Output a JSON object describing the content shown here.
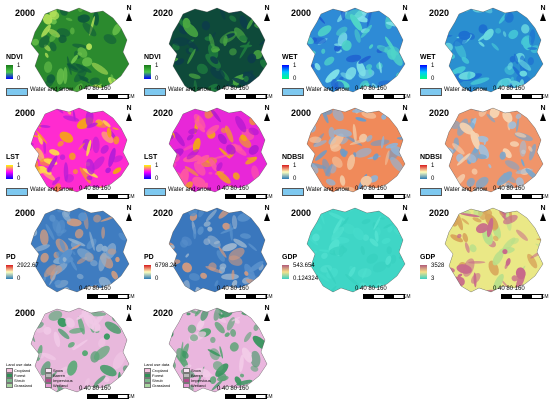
{
  "panels": [
    {
      "id": "ndvi-2000",
      "year": "2000",
      "label": "NDVI",
      "max": "1",
      "min": "0",
      "water": "Water and snow",
      "colors": [
        "#2b8a2e",
        "#69c04a",
        "#b6e35a",
        "#0f5a3a"
      ],
      "gradient": [
        "#1a7a1a",
        "#4cc84c",
        "#0000ff"
      ]
    },
    {
      "id": "ndvi-2020",
      "year": "2020",
      "label": "NDVI",
      "max": "1",
      "min": "0",
      "water": "Water and snow",
      "colors": [
        "#0e4a3a",
        "#1e7a3e",
        "#0c3d4a",
        "#4aa842"
      ],
      "gradient": [
        "#1a7a1a",
        "#4cc84c",
        "#0000ff"
      ]
    },
    {
      "id": "wet-2000",
      "year": "2000",
      "label": "WET",
      "max": "1",
      "min": "0",
      "water": "Water and snow",
      "colors": [
        "#2e8bd6",
        "#4fd4c8",
        "#1f5fcf",
        "#7fe0e8"
      ],
      "gradient": [
        "#0000ff",
        "#00c8ff",
        "#00ff80"
      ]
    },
    {
      "id": "wet-2020",
      "year": "2020",
      "label": "WET",
      "max": "1",
      "min": "0",
      "water": "Water and snow",
      "colors": [
        "#2a8fd0",
        "#45c7d6",
        "#1d6fd0",
        "#6ad8e0"
      ],
      "gradient": [
        "#0000ff",
        "#00c8ff",
        "#00ff80"
      ]
    },
    {
      "id": "lst-2000",
      "year": "2000",
      "label": "LST",
      "max": "1",
      "min": "0",
      "water": "Water and snow",
      "colors": [
        "#ff2bd0",
        "#f6a21a",
        "#b41dd8",
        "#ffd84a"
      ],
      "gradient": [
        "#ffff00",
        "#ff00ff",
        "#0000ff"
      ]
    },
    {
      "id": "lst-2020",
      "year": "2020",
      "label": "LST",
      "max": "1",
      "min": "0",
      "water": "Water and snow",
      "colors": [
        "#e827d8",
        "#b319d0",
        "#f3a31c",
        "#ff5aa0"
      ],
      "gradient": [
        "#ffff00",
        "#ff00ff",
        "#0000ff"
      ]
    },
    {
      "id": "ndbsi-2000",
      "year": "2000",
      "label": "NDBSI",
      "max": "1",
      "min": "0",
      "water": "Water and snow",
      "colors": [
        "#f08a5a",
        "#8fb4d8",
        "#f3c6a0",
        "#6d9bc8"
      ],
      "gradient": [
        "#d7191c",
        "#ffffbf",
        "#2c7bb6"
      ]
    },
    {
      "id": "ndbsi-2020",
      "year": "2020",
      "label": "NDBSI",
      "max": "1",
      "min": "0",
      "water": "Water and snow",
      "colors": [
        "#f0956a",
        "#9ec0de",
        "#f6d2b0",
        "#7aa6cd"
      ],
      "gradient": [
        "#d7191c",
        "#ffffbf",
        "#2c7bb6"
      ]
    },
    {
      "id": "pd-2000",
      "year": "2000",
      "label": "PD",
      "max": "2922.67",
      "min": "0",
      "water": "",
      "colors": [
        "#3f7cc0",
        "#5a92cc",
        "#8fb0cf",
        "#c89a84"
      ],
      "gradient": [
        "#d7191c",
        "#ffffbf",
        "#2c7bb6"
      ]
    },
    {
      "id": "pd-2020",
      "year": "2020",
      "label": "PD",
      "max": "6798.24",
      "min": "0",
      "water": "",
      "colors": [
        "#3a77bd",
        "#5890cb",
        "#9bb5cf",
        "#d29a80"
      ],
      "gradient": [
        "#d7191c",
        "#ffffbf",
        "#2c7bb6"
      ]
    },
    {
      "id": "gdp-2000",
      "year": "2000",
      "label": "GDP",
      "max": "543.654",
      "min": "0.124324",
      "water": "",
      "colors": [
        "#3fd6c6",
        "#46dccb",
        "#38d0bf",
        "#52e0d0"
      ],
      "gradient": [
        "#b05a7a",
        "#f5e08a",
        "#3ad0c2"
      ]
    },
    {
      "id": "gdp-2020",
      "year": "2020",
      "label": "GDP",
      "max": "3528",
      "min": "3",
      "water": "",
      "colors": [
        "#eae886",
        "#b9df8a",
        "#d7a45a",
        "#c86a8a"
      ],
      "gradient": [
        "#b05a7a",
        "#f5e08a",
        "#3ad0c2"
      ]
    }
  ],
  "scale": {
    "numbers": "0  40 80   160",
    "unit": "KM"
  },
  "north": "N",
  "landuse": [
    {
      "id": "lu-2000",
      "year": "2000",
      "colors": [
        "#e8b8dc",
        "#5aa876",
        "#f0c8e6",
        "#3c9a62"
      ]
    },
    {
      "id": "lu-2020",
      "year": "2020",
      "colors": [
        "#eab6de",
        "#58a473",
        "#f2cce8",
        "#3a9660"
      ]
    }
  ],
  "landuse_legend": {
    "title": "Land use data",
    "items": [
      {
        "label": "Cropland",
        "color": "#f4c1de"
      },
      {
        "label": "Snow",
        "color": "#f7e3f3"
      },
      {
        "label": "Forest",
        "color": "#2f8f55"
      },
      {
        "label": "Barren",
        "color": "#b8b8b8"
      },
      {
        "label": "Shrub",
        "color": "#7ab88a"
      },
      {
        "label": "Impervious",
        "color": "#b24a8c"
      },
      {
        "label": "Grassland",
        "color": "#a8d5a0"
      },
      {
        "label": "Wetland",
        "color": "#e59ad3"
      }
    ],
    "water_label": "Water"
  }
}
